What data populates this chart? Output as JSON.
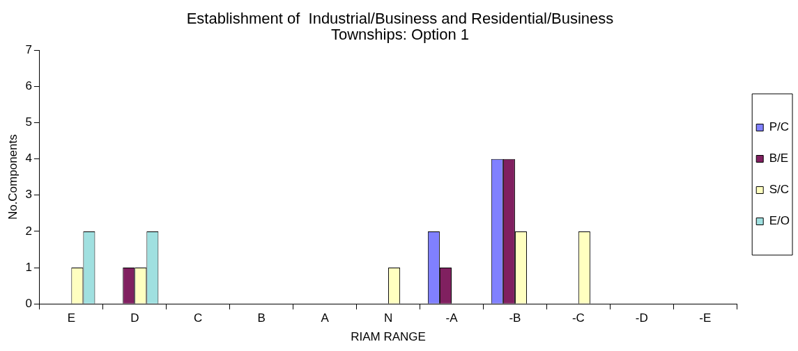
{
  "chart_data": {
    "type": "bar",
    "title": "Establishment of  Industrial/Business and Residential/Business Townships: Option 1",
    "xlabel": "RIAM RANGE",
    "ylabel": "No.Components",
    "categories": [
      "E",
      "D",
      "C",
      "B",
      "A",
      "N",
      "-A",
      "-B",
      "-C",
      "-D",
      "-E"
    ],
    "series": [
      {
        "name": "P/C",
        "color": "#8080ff",
        "values": [
          0,
          0,
          0,
          0,
          0,
          0,
          2,
          4,
          0,
          0,
          0
        ]
      },
      {
        "name": "B/E",
        "color": "#802060",
        "values": [
          0,
          1,
          0,
          0,
          0,
          0,
          1,
          4,
          0,
          0,
          0
        ]
      },
      {
        "name": "S/C",
        "color": "#ffffc0",
        "values": [
          1,
          1,
          0,
          0,
          0,
          1,
          0,
          2,
          2,
          0,
          0
        ]
      },
      {
        "name": "E/O",
        "color": "#a0e0e0",
        "values": [
          2,
          2,
          0,
          0,
          0,
          0,
          0,
          0,
          0,
          0,
          0
        ]
      }
    ],
    "ylim": [
      0,
      7
    ],
    "yticks": [
      0,
      1,
      2,
      3,
      4,
      5,
      6,
      7
    ],
    "grid": false,
    "legend": "right"
  }
}
